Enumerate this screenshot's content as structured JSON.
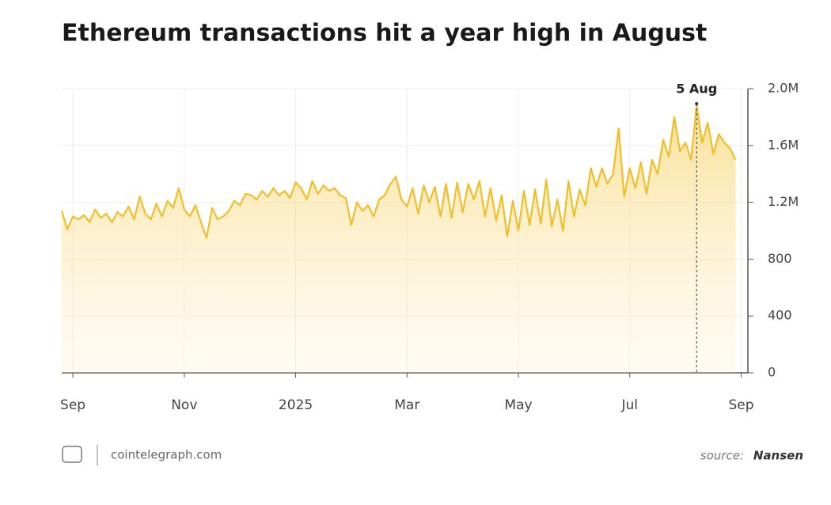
{
  "chart_data": {
    "type": "area",
    "title": "Ethereum transactions hit a year high in August",
    "brand": "cointelegraph.com",
    "source_label": "source:",
    "source": "Nansen",
    "annotation": {
      "label": "5 Aug",
      "x": 11.2
    },
    "color": "#f0be2a",
    "grid": true,
    "xlim": [
      -0.2,
      12.05
    ],
    "xticks": [
      {
        "value": 0,
        "label": "Sep"
      },
      {
        "value": 2,
        "label": "Nov"
      },
      {
        "value": 4,
        "label": "2025"
      },
      {
        "value": 6,
        "label": "Mar"
      },
      {
        "value": 8,
        "label": "May"
      },
      {
        "value": 10,
        "label": "Jul"
      },
      {
        "value": 12,
        "label": "Sep"
      }
    ],
    "ylim": [
      0,
      2000000
    ],
    "yticks": [
      0,
      {
        "value": 400000,
        "label": "400"
      },
      {
        "value": 800000,
        "label": "800"
      },
      {
        "value": 1200000,
        "label": "1.2M"
      },
      {
        "value": 1600000,
        "label": "1.6M"
      },
      {
        "value": 2000000,
        "label": "2.0M"
      }
    ],
    "x": [
      -0.2,
      -0.1,
      0,
      0.1,
      0.2,
      0.3,
      0.4,
      0.5,
      0.6,
      0.7,
      0.8,
      0.9,
      1,
      1.1,
      1.2,
      1.3,
      1.4,
      1.5,
      1.6,
      1.7,
      1.8,
      1.9,
      2,
      2.1,
      2.2,
      2.3,
      2.4,
      2.5,
      2.6,
      2.7,
      2.8,
      2.9,
      3,
      3.1,
      3.2,
      3.3,
      3.4,
      3.5,
      3.6,
      3.7,
      3.8,
      3.9,
      4,
      4.1,
      4.2,
      4.3,
      4.4,
      4.5,
      4.6,
      4.7,
      4.8,
      4.9,
      5,
      5.1,
      5.2,
      5.3,
      5.4,
      5.5,
      5.6,
      5.7,
      5.8,
      5.9,
      6,
      6.1,
      6.2,
      6.3,
      6.4,
      6.5,
      6.6,
      6.7,
      6.8,
      6.9,
      7,
      7.1,
      7.2,
      7.3,
      7.4,
      7.5,
      7.6,
      7.7,
      7.8,
      7.9,
      8,
      8.1,
      8.2,
      8.3,
      8.4,
      8.5,
      8.6,
      8.7,
      8.8,
      8.9,
      9,
      9.1,
      9.2,
      9.3,
      9.4,
      9.5,
      9.6,
      9.7,
      9.8,
      9.9,
      10,
      10.1,
      10.2,
      10.3,
      10.4,
      10.5,
      10.6,
      10.7,
      10.8,
      10.9,
      11,
      11.1,
      11.2,
      11.3,
      11.4,
      11.5,
      11.6,
      11.7,
      11.8,
      11.9
    ],
    "values": [
      1140000,
      1010000,
      1100000,
      1080000,
      1110000,
      1060000,
      1150000,
      1090000,
      1120000,
      1060000,
      1130000,
      1100000,
      1170000,
      1080000,
      1240000,
      1120000,
      1080000,
      1190000,
      1100000,
      1210000,
      1160000,
      1300000,
      1150000,
      1100000,
      1180000,
      1060000,
      950000,
      1160000,
      1080000,
      1100000,
      1140000,
      1210000,
      1180000,
      1260000,
      1250000,
      1220000,
      1280000,
      1240000,
      1300000,
      1250000,
      1280000,
      1230000,
      1340000,
      1300000,
      1220000,
      1350000,
      1260000,
      1320000,
      1280000,
      1300000,
      1250000,
      1230000,
      1040000,
      1200000,
      1140000,
      1180000,
      1100000,
      1220000,
      1250000,
      1330000,
      1380000,
      1220000,
      1170000,
      1300000,
      1120000,
      1320000,
      1200000,
      1310000,
      1100000,
      1330000,
      1090000,
      1340000,
      1130000,
      1330000,
      1220000,
      1350000,
      1100000,
      1300000,
      1070000,
      1250000,
      960000,
      1210000,
      1000000,
      1280000,
      1040000,
      1290000,
      1050000,
      1360000,
      1030000,
      1220000,
      1000000,
      1350000,
      1100000,
      1290000,
      1180000,
      1440000,
      1310000,
      1440000,
      1330000,
      1400000,
      1720000,
      1240000,
      1440000,
      1300000,
      1480000,
      1260000,
      1500000,
      1400000,
      1640000,
      1520000,
      1800000,
      1560000,
      1620000,
      1500000,
      1880000,
      1620000,
      1760000,
      1540000,
      1680000,
      1620000,
      1580000,
      1500000
    ]
  }
}
